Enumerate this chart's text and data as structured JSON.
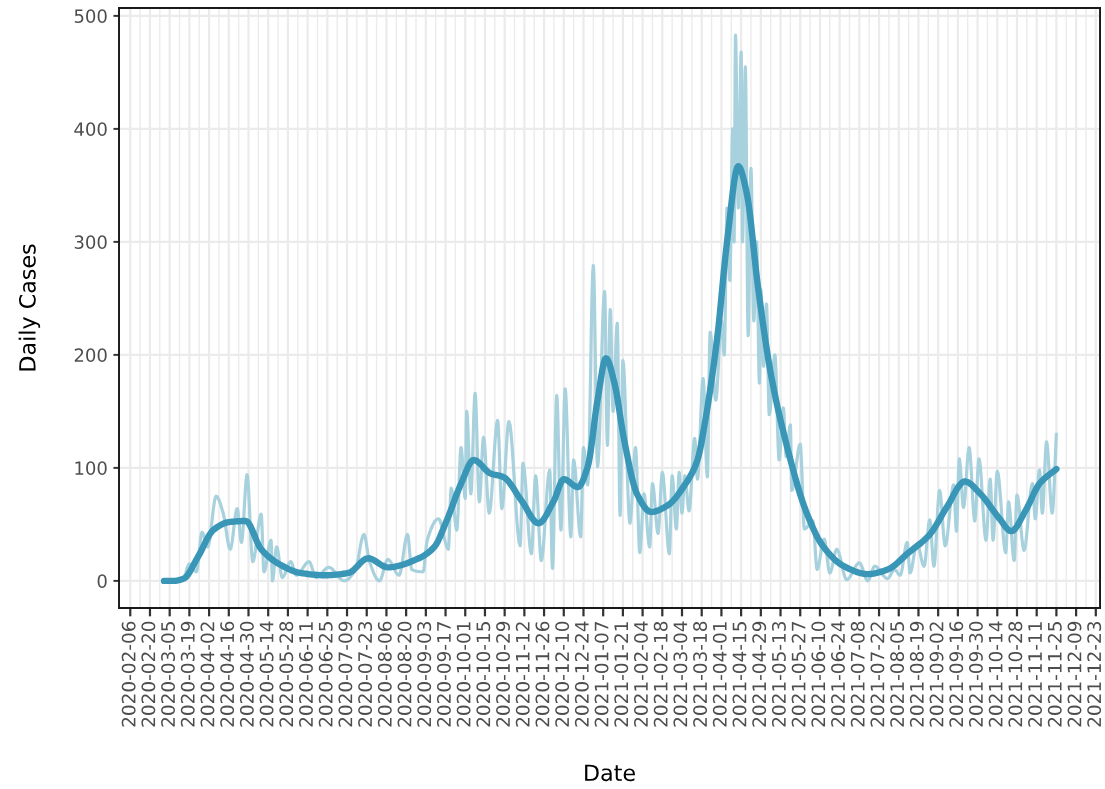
{
  "chart_data": {
    "type": "line",
    "xlabel": "Date",
    "ylabel": "Daily Cases",
    "xlim": [
      "2020-01-29",
      "2021-12-26"
    ],
    "ylim": [
      -24,
      507
    ],
    "xticks": [
      "2020-02-06",
      "2020-02-20",
      "2020-03-05",
      "2020-03-19",
      "2020-04-02",
      "2020-04-16",
      "2020-04-30",
      "2020-05-14",
      "2020-05-28",
      "2020-06-11",
      "2020-06-25",
      "2020-07-09",
      "2020-07-23",
      "2020-08-06",
      "2020-08-20",
      "2020-09-03",
      "2020-09-17",
      "2020-10-01",
      "2020-10-15",
      "2020-10-29",
      "2020-11-12",
      "2020-11-26",
      "2020-12-10",
      "2020-12-24",
      "2021-01-07",
      "2021-01-21",
      "2021-02-04",
      "2021-02-18",
      "2021-03-04",
      "2021-03-18",
      "2021-04-01",
      "2021-04-15",
      "2021-04-29",
      "2021-05-13",
      "2021-05-27",
      "2021-06-10",
      "2021-06-24",
      "2021-07-08",
      "2021-07-22",
      "2021-08-05",
      "2021-08-19",
      "2021-09-02",
      "2021-09-16",
      "2021-09-30",
      "2021-10-14",
      "2021-10-28",
      "2021-11-11",
      "2021-11-25",
      "2021-12-09",
      "2021-12-23"
    ],
    "yticks": [
      0,
      100,
      200,
      300,
      400,
      500
    ],
    "grid": true,
    "series": [
      {
        "color": "#a8d1de",
        "x": [
          "2020-03-01",
          "2020-03-09",
          "2020-03-15",
          "2020-03-19",
          "2020-03-24",
          "2020-03-28",
          "2020-04-01",
          "2020-04-07",
          "2020-04-12",
          "2020-04-17",
          "2020-04-22",
          "2020-04-25",
          "2020-04-29",
          "2020-05-03",
          "2020-05-09",
          "2020-05-11",
          "2020-05-16",
          "2020-05-17",
          "2020-05-20",
          "2020-05-24",
          "2020-05-30",
          "2020-06-03",
          "2020-06-12",
          "2020-06-17",
          "2020-06-26",
          "2020-07-07",
          "2020-07-15",
          "2020-07-21",
          "2020-07-25",
          "2020-08-01",
          "2020-08-07",
          "2020-08-15",
          "2020-08-21",
          "2020-08-24",
          "2020-09-01",
          "2020-09-04",
          "2020-09-12",
          "2020-09-19",
          "2020-09-21",
          "2020-09-25",
          "2020-09-28",
          "2020-10-01",
          "2020-10-02",
          "2020-10-05",
          "2020-10-08",
          "2020-10-11",
          "2020-10-14",
          "2020-10-18",
          "2020-10-24",
          "2020-10-27",
          "2020-11-01",
          "2020-11-09",
          "2020-11-11",
          "2020-11-17",
          "2020-11-20",
          "2020-11-24",
          "2020-11-30",
          "2020-12-02",
          "2020-12-05",
          "2020-12-08",
          "2020-12-11",
          "2020-12-15",
          "2020-12-17",
          "2020-12-22",
          "2020-12-24",
          "2020-12-27",
          "2020-12-31",
          "2021-01-03",
          "2021-01-08",
          "2021-01-10",
          "2021-01-12",
          "2021-01-14",
          "2021-01-17",
          "2021-01-19",
          "2021-01-21",
          "2021-01-26",
          "2021-01-30",
          "2021-02-02",
          "2021-02-05",
          "2021-02-09",
          "2021-02-11",
          "2021-02-15",
          "2021-02-18",
          "2021-02-23",
          "2021-02-25",
          "2021-02-28",
          "2021-03-02",
          "2021-03-04",
          "2021-03-06",
          "2021-03-09",
          "2021-03-13",
          "2021-03-15",
          "2021-03-19",
          "2021-03-22",
          "2021-03-24",
          "2021-03-28",
          "2021-04-01",
          "2021-04-03",
          "2021-04-05",
          "2021-04-07",
          "2021-04-09",
          "2021-04-10",
          "2021-04-11",
          "2021-04-13",
          "2021-04-15",
          "2021-04-16",
          "2021-04-18",
          "2021-04-20",
          "2021-04-22",
          "2021-04-24",
          "2021-04-26",
          "2021-04-28",
          "2021-04-29",
          "2021-05-01",
          "2021-05-03",
          "2021-05-05",
          "2021-05-09",
          "2021-05-12",
          "2021-05-15",
          "2021-05-17",
          "2021-05-20",
          "2021-05-21",
          "2021-05-27",
          "2021-05-30",
          "2021-06-05",
          "2021-06-08",
          "2021-06-13",
          "2021-06-17",
          "2021-06-22",
          "2021-06-29",
          "2021-07-08",
          "2021-07-14",
          "2021-07-19",
          "2021-07-28",
          "2021-08-02",
          "2021-08-06",
          "2021-08-11",
          "2021-08-13",
          "2021-08-18",
          "2021-08-23",
          "2021-08-27",
          "2021-08-30",
          "2021-09-03",
          "2021-09-07",
          "2021-09-13",
          "2021-09-15",
          "2021-09-17",
          "2021-09-20",
          "2021-09-24",
          "2021-09-28",
          "2021-10-01",
          "2021-10-06",
          "2021-10-09",
          "2021-10-11",
          "2021-10-14",
          "2021-10-20",
          "2021-10-22",
          "2021-10-26",
          "2021-10-28",
          "2021-11-02",
          "2021-11-08",
          "2021-11-10",
          "2021-11-13",
          "2021-11-15",
          "2021-11-18",
          "2021-11-22",
          "2021-11-25"
        ],
        "values": [
          0,
          0,
          3,
          15,
          8,
          43,
          30,
          75,
          60,
          28,
          64,
          34,
          94,
          17,
          59,
          8,
          36,
          0,
          30,
          3,
          17,
          5,
          17,
          3,
          12,
          0,
          10,
          41,
          17,
          0,
          19,
          5,
          41,
          10,
          8,
          36,
          55,
          28,
          82,
          45,
          118,
          73,
          150,
          77,
          166,
          70,
          127,
          60,
          142,
          64,
          141,
          31,
          104,
          24,
          93,
          18,
          98,
          11,
          164,
          45,
          170,
          39,
          107,
          39,
          118,
          85,
          279,
          101,
          256,
          120,
          240,
          150,
          228,
          58,
          195,
          51,
          118,
          25,
          77,
          30,
          86,
          42,
          96,
          24,
          93,
          46,
          96,
          60,
          93,
          62,
          126,
          90,
          179,
          92,
          220,
          160,
          230,
          200,
          330,
          266,
          400,
          300,
          483,
          330,
          468,
          300,
          455,
          217,
          365,
          230,
          300,
          175,
          258,
          190,
          245,
          147,
          200,
          107,
          153,
          110,
          138,
          80,
          121,
          46,
          53,
          10,
          37,
          7,
          28,
          1,
          16,
          0,
          13,
          2,
          10,
          5,
          34,
          7,
          33,
          13,
          54,
          13,
          80,
          31,
          85,
          44,
          108,
          65,
          118,
          53,
          108,
          36,
          90,
          36,
          97,
          25,
          70,
          18,
          76,
          27,
          86,
          55,
          98,
          60,
          123,
          60,
          130
        ]
      },
      {
        "color": "#3a96b7",
        "x": [
          "2020-03-01",
          "2020-03-08",
          "2020-03-15",
          "2020-03-25",
          "2020-04-05",
          "2020-04-16",
          "2020-04-28",
          "2020-05-09",
          "2020-05-23",
          "2020-06-06",
          "2020-06-23",
          "2020-07-10",
          "2020-07-24",
          "2020-08-07",
          "2020-08-29",
          "2020-09-09",
          "2020-09-18",
          "2020-09-28",
          "2020-10-07",
          "2020-10-19",
          "2020-10-28",
          "2020-11-10",
          "2020-11-22",
          "2020-12-03",
          "2020-12-10",
          "2020-12-20",
          "2020-12-27",
          "2021-01-03",
          "2021-01-09",
          "2021-01-15",
          "2021-01-22",
          "2021-01-31",
          "2021-02-10",
          "2021-02-22",
          "2021-03-06",
          "2021-03-15",
          "2021-03-20",
          "2021-03-29",
          "2021-04-05",
          "2021-04-13",
          "2021-04-19",
          "2021-04-27",
          "2021-05-06",
          "2021-05-18",
          "2021-05-31",
          "2021-06-12",
          "2021-06-27",
          "2021-07-14",
          "2021-07-28",
          "2021-08-12",
          "2021-08-27",
          "2021-09-08",
          "2021-09-21",
          "2021-10-02",
          "2021-10-15",
          "2021-10-24",
          "2021-11-03",
          "2021-11-13",
          "2021-11-25"
        ],
        "values": [
          0,
          0,
          2,
          21,
          45,
          52,
          53,
          28,
          14,
          7,
          5,
          7,
          20,
          12,
          20,
          30,
          54,
          86,
          107,
          95,
          92,
          71,
          51,
          71,
          90,
          83,
          101,
          160,
          197,
          175,
          124,
          77,
          61,
          67,
          85,
          107,
          138,
          215,
          300,
          367,
          343,
          260,
          184,
          117,
          62,
          31,
          13,
          6,
          10,
          25,
          41,
          65,
          88,
          77,
          56,
          44,
          62,
          86,
          99
        ]
      }
    ]
  }
}
